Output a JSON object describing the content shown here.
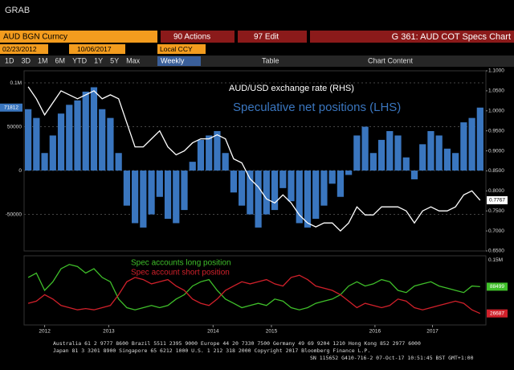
{
  "ui": {
    "app": "GRAB",
    "ticker": "AUD BGN Curncy",
    "actions": "90 Actions",
    "edit": "97 Edit",
    "page_title": "G 361: AUD COT Specs Chart",
    "start_date": "02/23/2012",
    "end_date": "10/06/2017",
    "currency": "Local CCY",
    "ranges": [
      "1D",
      "3D",
      "1M",
      "6M",
      "YTD",
      "1Y",
      "5Y",
      "Max"
    ],
    "frequency": "Weekly",
    "table": "Table",
    "chart_content": "Chart Content",
    "footer": [
      "Australia 61 2 9777 8600 Brazil 5511 2395 9000 Europe 44 20 7330 7500 Germany 49 69 9204 1210 Hong Kong 852 2977 6000",
      "Japan 81 3 3201 8900        Singapore 65 6212 1000        U.S. 1 212 318 2000        Copyright 2017 Bloomberg Finance L.P.",
      "SN 115652 G410-716-2 07-Oct-17 10:51:45 BST  GMT+1:00"
    ]
  },
  "chart_data": [
    {
      "type": "combo",
      "x": [
        2012.2,
        2012.3,
        2012.4,
        2012.5,
        2012.6,
        2012.7,
        2012.8,
        2012.9,
        2013.0,
        2013.1,
        2013.2,
        2013.3,
        2013.4,
        2013.5,
        2013.6,
        2013.7,
        2013.8,
        2013.9,
        2014.0,
        2014.1,
        2014.2,
        2014.3,
        2014.4,
        2014.5,
        2014.6,
        2014.7,
        2014.8,
        2014.9,
        2015.0,
        2015.1,
        2015.2,
        2015.3,
        2015.4,
        2015.5,
        2015.6,
        2015.7,
        2015.8,
        2015.9,
        2016.0,
        2016.1,
        2016.2,
        2016.3,
        2016.4,
        2016.5,
        2016.6,
        2016.7,
        2016.8,
        2016.9,
        2017.0,
        2017.1,
        2017.2,
        2017.3,
        2017.4,
        2017.5,
        2017.6,
        2017.7
      ],
      "xlim": [
        2012.15,
        2017.77
      ],
      "ylim": [
        -91700,
        113800
      ],
      "yticks": [
        {
          "value": 100000,
          "label": "0.1M"
        },
        50000,
        0,
        -50000
      ],
      "y2lim": [
        0.65,
        1.1
      ],
      "y2ticks": [
        {
          "value": 1.1,
          "label": "1.1000"
        },
        {
          "value": 1.05,
          "label": "1.0500"
        },
        {
          "value": 1.0,
          "label": "1.0000"
        },
        {
          "value": 0.95,
          "label": "0.9500"
        },
        {
          "value": 0.9,
          "label": "0.9000"
        },
        {
          "value": 0.85,
          "label": "0.8500"
        },
        {
          "value": 0.8,
          "label": "0.8000"
        },
        {
          "value": 0.75,
          "label": "0.7500"
        },
        {
          "value": 0.7,
          "label": "0.7000"
        },
        {
          "value": 0.65,
          "label": "0.6500"
        }
      ],
      "grid": true,
      "series": [
        {
          "name": "Speculative net positions (LHS)",
          "type": "bar",
          "color": "#3a76bf",
          "values": [
            70000,
            60000,
            20000,
            40000,
            65000,
            75000,
            80000,
            90000,
            95000,
            70000,
            60000,
            20000,
            -40000,
            -60000,
            -65000,
            -50000,
            -30000,
            -55000,
            -60000,
            -45000,
            10000,
            35000,
            40000,
            45000,
            20000,
            -25000,
            -40000,
            -50000,
            -65000,
            -50000,
            -45000,
            -20000,
            -35000,
            -60000,
            -65000,
            -55000,
            -40000,
            -15000,
            -30000,
            -5000,
            40000,
            50000,
            20000,
            35000,
            45000,
            40000,
            15000,
            -10000,
            30000,
            45000,
            40000,
            25000,
            20000,
            55000,
            60000,
            71812
          ]
        },
        {
          "name": "AUD/USD exchange rate (RHS)",
          "type": "line",
          "axis": "y2",
          "color": "#ffffff",
          "values": [
            1.06,
            1.03,
            0.99,
            1.02,
            1.05,
            1.04,
            1.03,
            1.04,
            1.05,
            1.03,
            1.04,
            1.03,
            0.97,
            0.91,
            0.91,
            0.93,
            0.95,
            0.91,
            0.89,
            0.9,
            0.92,
            0.93,
            0.93,
            0.94,
            0.93,
            0.88,
            0.87,
            0.83,
            0.81,
            0.78,
            0.77,
            0.79,
            0.77,
            0.74,
            0.72,
            0.71,
            0.72,
            0.72,
            0.7,
            0.72,
            0.76,
            0.74,
            0.74,
            0.76,
            0.76,
            0.76,
            0.75,
            0.72,
            0.75,
            0.76,
            0.75,
            0.75,
            0.76,
            0.79,
            0.8,
            0.7767
          ]
        }
      ]
    },
    {
      "type": "line",
      "x": [
        2012.2,
        2012.3,
        2012.4,
        2012.5,
        2012.6,
        2012.7,
        2012.8,
        2012.9,
        2013.0,
        2013.1,
        2013.2,
        2013.3,
        2013.4,
        2013.5,
        2013.6,
        2013.7,
        2013.8,
        2013.9,
        2014.0,
        2014.1,
        2014.2,
        2014.3,
        2014.4,
        2014.5,
        2014.6,
        2014.7,
        2014.8,
        2014.9,
        2015.0,
        2015.1,
        2015.2,
        2015.3,
        2015.4,
        2015.5,
        2015.6,
        2015.7,
        2015.8,
        2015.9,
        2016.0,
        2016.1,
        2016.2,
        2016.3,
        2016.4,
        2016.5,
        2016.6,
        2016.7,
        2016.8,
        2016.9,
        2017.0,
        2017.1,
        2017.2,
        2017.3,
        2017.4,
        2017.5,
        2017.6,
        2017.7
      ],
      "xlim": [
        2012.15,
        2017.77
      ],
      "xticks": [
        {
          "value": 2012.4,
          "label": "2012"
        },
        {
          "value": 2013.18,
          "label": "2013"
        },
        {
          "value": 2014.45,
          "label": "2014"
        },
        {
          "value": 2015.16,
          "label": "2015"
        },
        {
          "value": 2016.42,
          "label": "2016"
        },
        {
          "value": 2017.12,
          "label": "2017"
        }
      ],
      "ylim": [
        0,
        160000
      ],
      "yticks": [
        {
          "value": 150000,
          "label": "0.15M"
        }
      ],
      "series": [
        {
          "name": "Spec accounts long position",
          "color": "#3fbf2a",
          "values": [
            110000,
            120000,
            80000,
            100000,
            130000,
            140000,
            135000,
            120000,
            130000,
            110000,
            100000,
            60000,
            40000,
            35000,
            40000,
            45000,
            40000,
            45000,
            60000,
            70000,
            90000,
            100000,
            105000,
            80000,
            60000,
            50000,
            40000,
            45000,
            50000,
            45000,
            60000,
            55000,
            40000,
            35000,
            40000,
            50000,
            55000,
            60000,
            70000,
            90000,
            100000,
            90000,
            95000,
            105000,
            100000,
            80000,
            75000,
            90000,
            95000,
            100000,
            90000,
            85000,
            80000,
            75000,
            90000,
            88499
          ]
        },
        {
          "name": "Spec account short position",
          "color": "#d0202a",
          "values": [
            50000,
            55000,
            70000,
            60000,
            45000,
            40000,
            35000,
            38000,
            35000,
            40000,
            45000,
            70000,
            100000,
            110000,
            105000,
            95000,
            100000,
            105000,
            90000,
            80000,
            60000,
            50000,
            45000,
            60000,
            80000,
            90000,
            100000,
            95000,
            100000,
            105000,
            95000,
            90000,
            110000,
            115000,
            105000,
            90000,
            85000,
            80000,
            70000,
            55000,
            40000,
            50000,
            45000,
            40000,
            45000,
            60000,
            55000,
            40000,
            35000,
            40000,
            45000,
            50000,
            55000,
            50000,
            35000,
            26687
          ]
        }
      ]
    }
  ]
}
